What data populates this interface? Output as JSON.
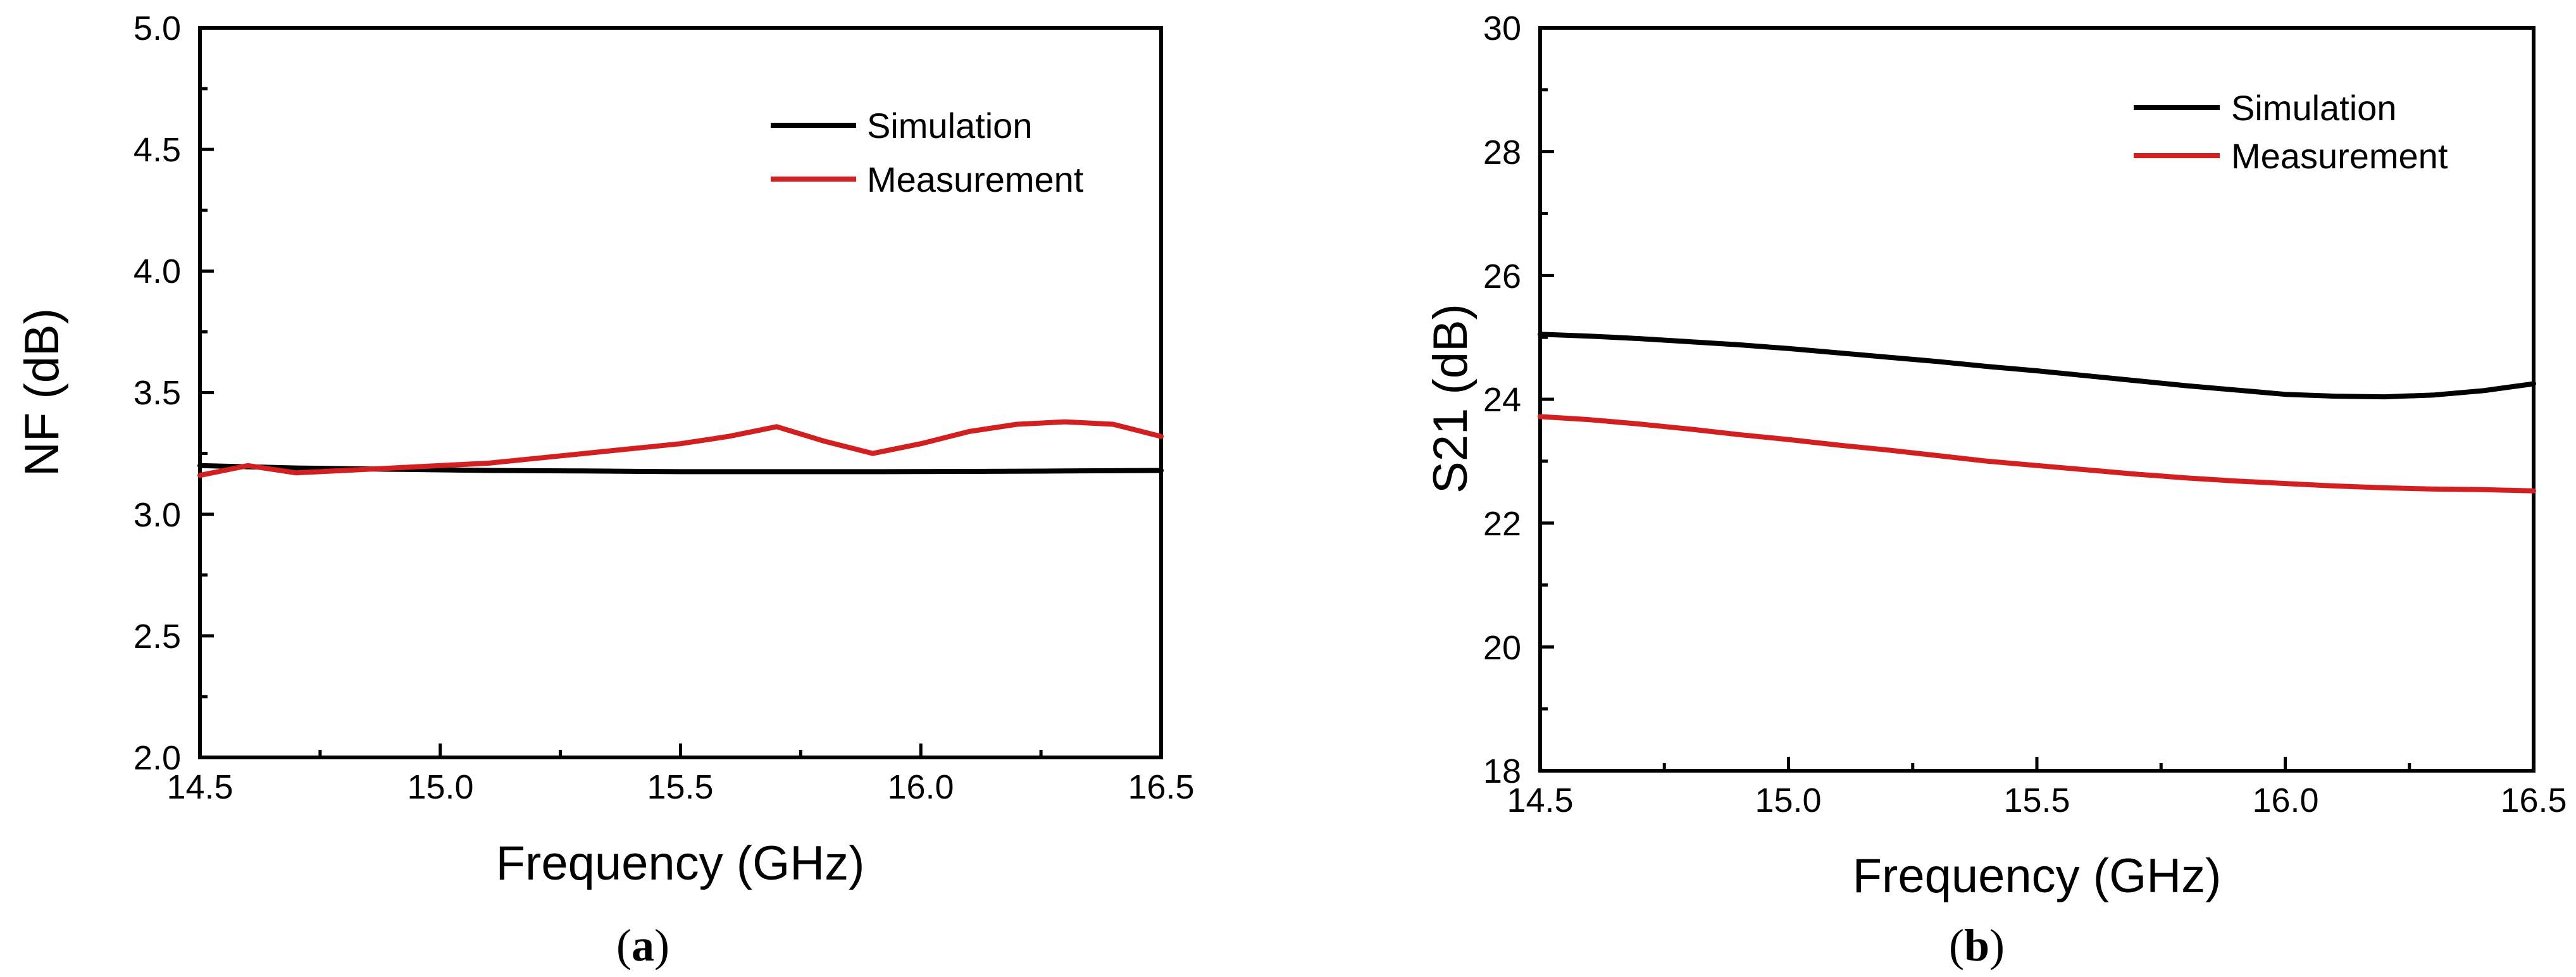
{
  "chart_data": [
    {
      "type": "line",
      "panel_label": "a",
      "xlabel": "Frequency (GHz)",
      "ylabel": "NF (dB)",
      "xlim": [
        14.5,
        16.5
      ],
      "ylim": [
        2.0,
        5.0
      ],
      "x_ticks": [
        "14.5",
        "15.0",
        "15.5",
        "16.0",
        "16.5"
      ],
      "y_ticks": [
        "2.0",
        "2.5",
        "3.0",
        "3.5",
        "4.0",
        "4.5",
        "5.0"
      ],
      "legend_position": "top-right",
      "series": [
        {
          "name": "Simulation",
          "color": "#000000",
          "x": [
            14.5,
            14.7,
            14.9,
            15.1,
            15.3,
            15.5,
            15.7,
            15.9,
            16.1,
            16.3,
            16.5
          ],
          "y": [
            3.2,
            3.19,
            3.185,
            3.18,
            3.178,
            3.175,
            3.175,
            3.175,
            3.176,
            3.178,
            3.18
          ]
        },
        {
          "name": "Measurement",
          "color": "#d21f1f",
          "x": [
            14.5,
            14.6,
            14.7,
            14.8,
            14.9,
            15.0,
            15.1,
            15.2,
            15.3,
            15.4,
            15.5,
            15.6,
            15.7,
            15.8,
            15.9,
            16.0,
            16.1,
            16.2,
            16.3,
            16.4,
            16.5
          ],
          "y": [
            3.16,
            3.2,
            3.17,
            3.18,
            3.19,
            3.2,
            3.21,
            3.23,
            3.25,
            3.27,
            3.29,
            3.32,
            3.36,
            3.3,
            3.25,
            3.29,
            3.34,
            3.37,
            3.38,
            3.37,
            3.32
          ]
        }
      ]
    },
    {
      "type": "line",
      "panel_label": "b",
      "xlabel": "Frequency (GHz)",
      "ylabel": "S21 (dB)",
      "xlim": [
        14.5,
        16.5
      ],
      "ylim": [
        18,
        30
      ],
      "x_ticks": [
        "14.5",
        "15.0",
        "15.5",
        "16.0",
        "16.5"
      ],
      "y_ticks": [
        "18",
        "20",
        "22",
        "24",
        "26",
        "28",
        "30"
      ],
      "legend_position": "top-right",
      "series": [
        {
          "name": "Simulation",
          "color": "#000000",
          "x": [
            14.5,
            14.6,
            14.7,
            14.8,
            14.9,
            15.0,
            15.1,
            15.2,
            15.3,
            15.4,
            15.5,
            15.6,
            15.7,
            15.8,
            15.9,
            16.0,
            16.1,
            16.2,
            16.3,
            16.4,
            16.5
          ],
          "y": [
            25.05,
            25.02,
            24.98,
            24.93,
            24.88,
            24.82,
            24.75,
            24.68,
            24.61,
            24.53,
            24.46,
            24.38,
            24.3,
            24.22,
            24.15,
            24.08,
            24.05,
            24.04,
            24.07,
            24.14,
            24.25
          ]
        },
        {
          "name": "Measurement",
          "color": "#d21f1f",
          "x": [
            14.5,
            14.6,
            14.7,
            14.8,
            14.9,
            15.0,
            15.1,
            15.2,
            15.3,
            15.4,
            15.5,
            15.6,
            15.7,
            15.8,
            15.9,
            16.0,
            16.1,
            16.2,
            16.3,
            16.4,
            16.5
          ],
          "y": [
            23.72,
            23.67,
            23.6,
            23.52,
            23.43,
            23.35,
            23.26,
            23.18,
            23.09,
            23.0,
            22.93,
            22.86,
            22.79,
            22.73,
            22.68,
            22.64,
            22.6,
            22.57,
            22.55,
            22.54,
            22.52
          ]
        }
      ]
    }
  ]
}
